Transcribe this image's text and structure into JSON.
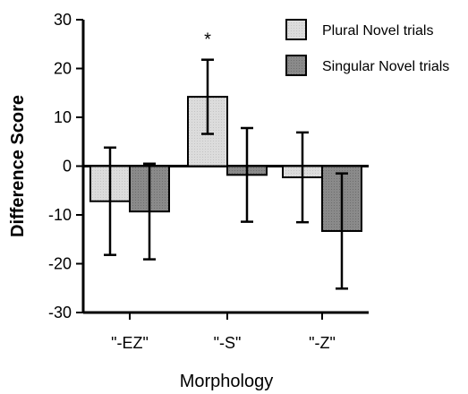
{
  "chart_data": {
    "type": "bar",
    "title": "",
    "xlabel": "Morphology",
    "ylabel": "Difference Score",
    "ylim": [
      -30,
      30
    ],
    "yticks": [
      30,
      20,
      10,
      0,
      -10,
      -20,
      -30
    ],
    "categories": [
      "\"-EZ\"",
      "\"-S\"",
      "\"-Z\""
    ],
    "series": [
      {
        "name": "Plural Novel trials",
        "color": "#dcdcdc",
        "values": [
          -7.2,
          14.2,
          -2.3
        ],
        "error": [
          11,
          7.6,
          9.2
        ]
      },
      {
        "name": "Singular Novel trials",
        "color": "#8a8a8a",
        "values": [
          -9.3,
          -1.8,
          -13.3
        ],
        "error": [
          9.8,
          9.6,
          11.8
        ]
      }
    ],
    "annotations": [
      {
        "text": "*",
        "category_index": 1,
        "series_index": 0
      }
    ],
    "legend": {
      "position": "top-right"
    },
    "grid": false
  }
}
